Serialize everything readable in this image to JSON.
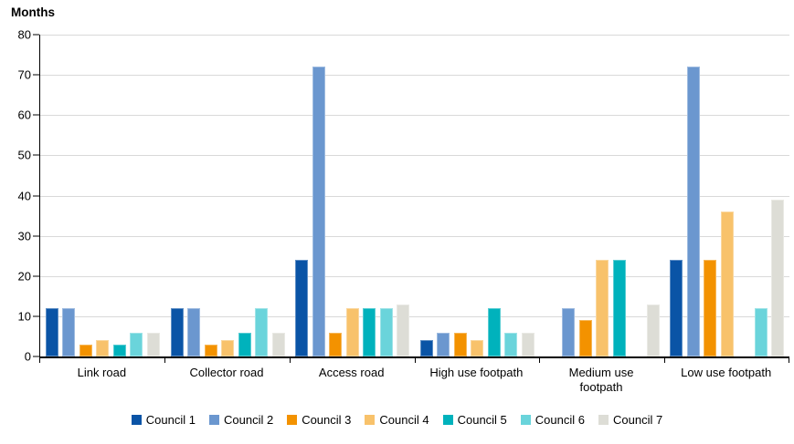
{
  "chart_data": {
    "type": "bar",
    "title": "Months",
    "ylabel": "Months",
    "xlabel": "",
    "categories": [
      "Link road",
      "Collector road",
      "Access road",
      "High use footpath",
      "Medium use footpath",
      "Low use footpath"
    ],
    "series": [
      {
        "name": "Council 1",
        "color": "#0a54a6",
        "values": [
          12,
          12,
          24,
          4,
          0,
          24
        ]
      },
      {
        "name": "Council 2",
        "color": "#6b97cf",
        "values": [
          12,
          12,
          72,
          6,
          12,
          72
        ]
      },
      {
        "name": "Council 3",
        "color": "#f39200",
        "values": [
          3,
          3,
          6,
          6,
          9,
          24
        ]
      },
      {
        "name": "Council 4",
        "color": "#f8c26b",
        "values": [
          4,
          4,
          12,
          4,
          24,
          36
        ]
      },
      {
        "name": "Council 5",
        "color": "#00b2bc",
        "values": [
          3,
          6,
          12,
          12,
          24,
          0
        ]
      },
      {
        "name": "Council 6",
        "color": "#6ad4db",
        "values": [
          6,
          12,
          12,
          6,
          0,
          12
        ]
      },
      {
        "name": "Council 7",
        "color": "#dddDD6",
        "values": [
          6,
          6,
          13,
          6,
          13,
          39
        ]
      }
    ],
    "ylim": [
      0,
      80
    ],
    "ytick_step": 10,
    "grid": true,
    "legend_position": "bottom",
    "colors": {
      "gridline": "#d9d9d9",
      "axis": "#000000"
    }
  }
}
